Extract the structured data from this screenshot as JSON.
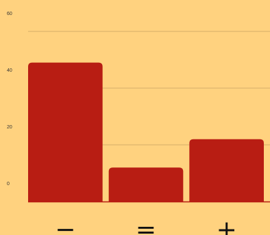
{
  "colors": {
    "background": "#FFD27F",
    "bar": "#B81D13",
    "gridline": "#C9A060",
    "axis": "#B81D13"
  },
  "chart_data": {
    "type": "bar",
    "categories": [
      "−",
      "=",
      "+"
    ],
    "values": [
      49,
      12,
      22
    ],
    "ylim": [
      0,
      60
    ],
    "yticks": [
      0,
      20,
      40,
      60
    ],
    "ytick_labels": [
      "0",
      "20",
      "40",
      "60"
    ],
    "grid": true,
    "legend": "none"
  }
}
